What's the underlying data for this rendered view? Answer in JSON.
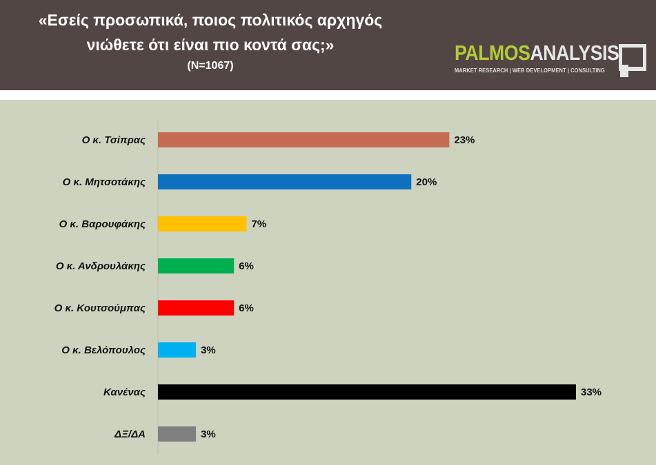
{
  "header": {
    "title_line1": "«Εσείς προσωπικά, ποιος πολιτικός αρχηγός",
    "title_line2": "νιώθετε ότι είναι πιο κοντά σας;»",
    "sample_size": "(N=1067)",
    "background_color": "#524644"
  },
  "logo": {
    "word_part1": "PALMOS",
    "word_part2": "ANALYSIS",
    "tagline": "MARKET RESEARCH | WEB DEVELOPMENT | CONSULTING",
    "accent_color": "#b4cc3a",
    "icon": "palmos-mark-icon"
  },
  "chart_data": {
    "type": "bar",
    "orientation": "horizontal",
    "categories": [
      "Ο κ. Τσίπρας",
      "Ο κ. Μητσοτάκης",
      "Ο κ. Βαρουφάκης",
      "Ο κ. Ανδρουλάκης",
      "Ο κ. Κουτσούμπας",
      "Ο κ. Βελόπουλος",
      "Κανένας",
      "ΔΞ/ΔΑ"
    ],
    "values": [
      23,
      20,
      7,
      6,
      6,
      3,
      33,
      3
    ],
    "value_labels": [
      "23%",
      "20%",
      "7%",
      "6%",
      "6%",
      "3%",
      "33%",
      "3%"
    ],
    "colors": [
      "#c66b52",
      "#0f70bf",
      "#ffc000",
      "#00b050",
      "#ff0000",
      "#00b0f0",
      "#000000",
      "#808080"
    ],
    "unit": "%",
    "xlim": [
      0,
      33
    ],
    "grid": false,
    "legend": "none",
    "background_color": "#cdd3bf"
  }
}
